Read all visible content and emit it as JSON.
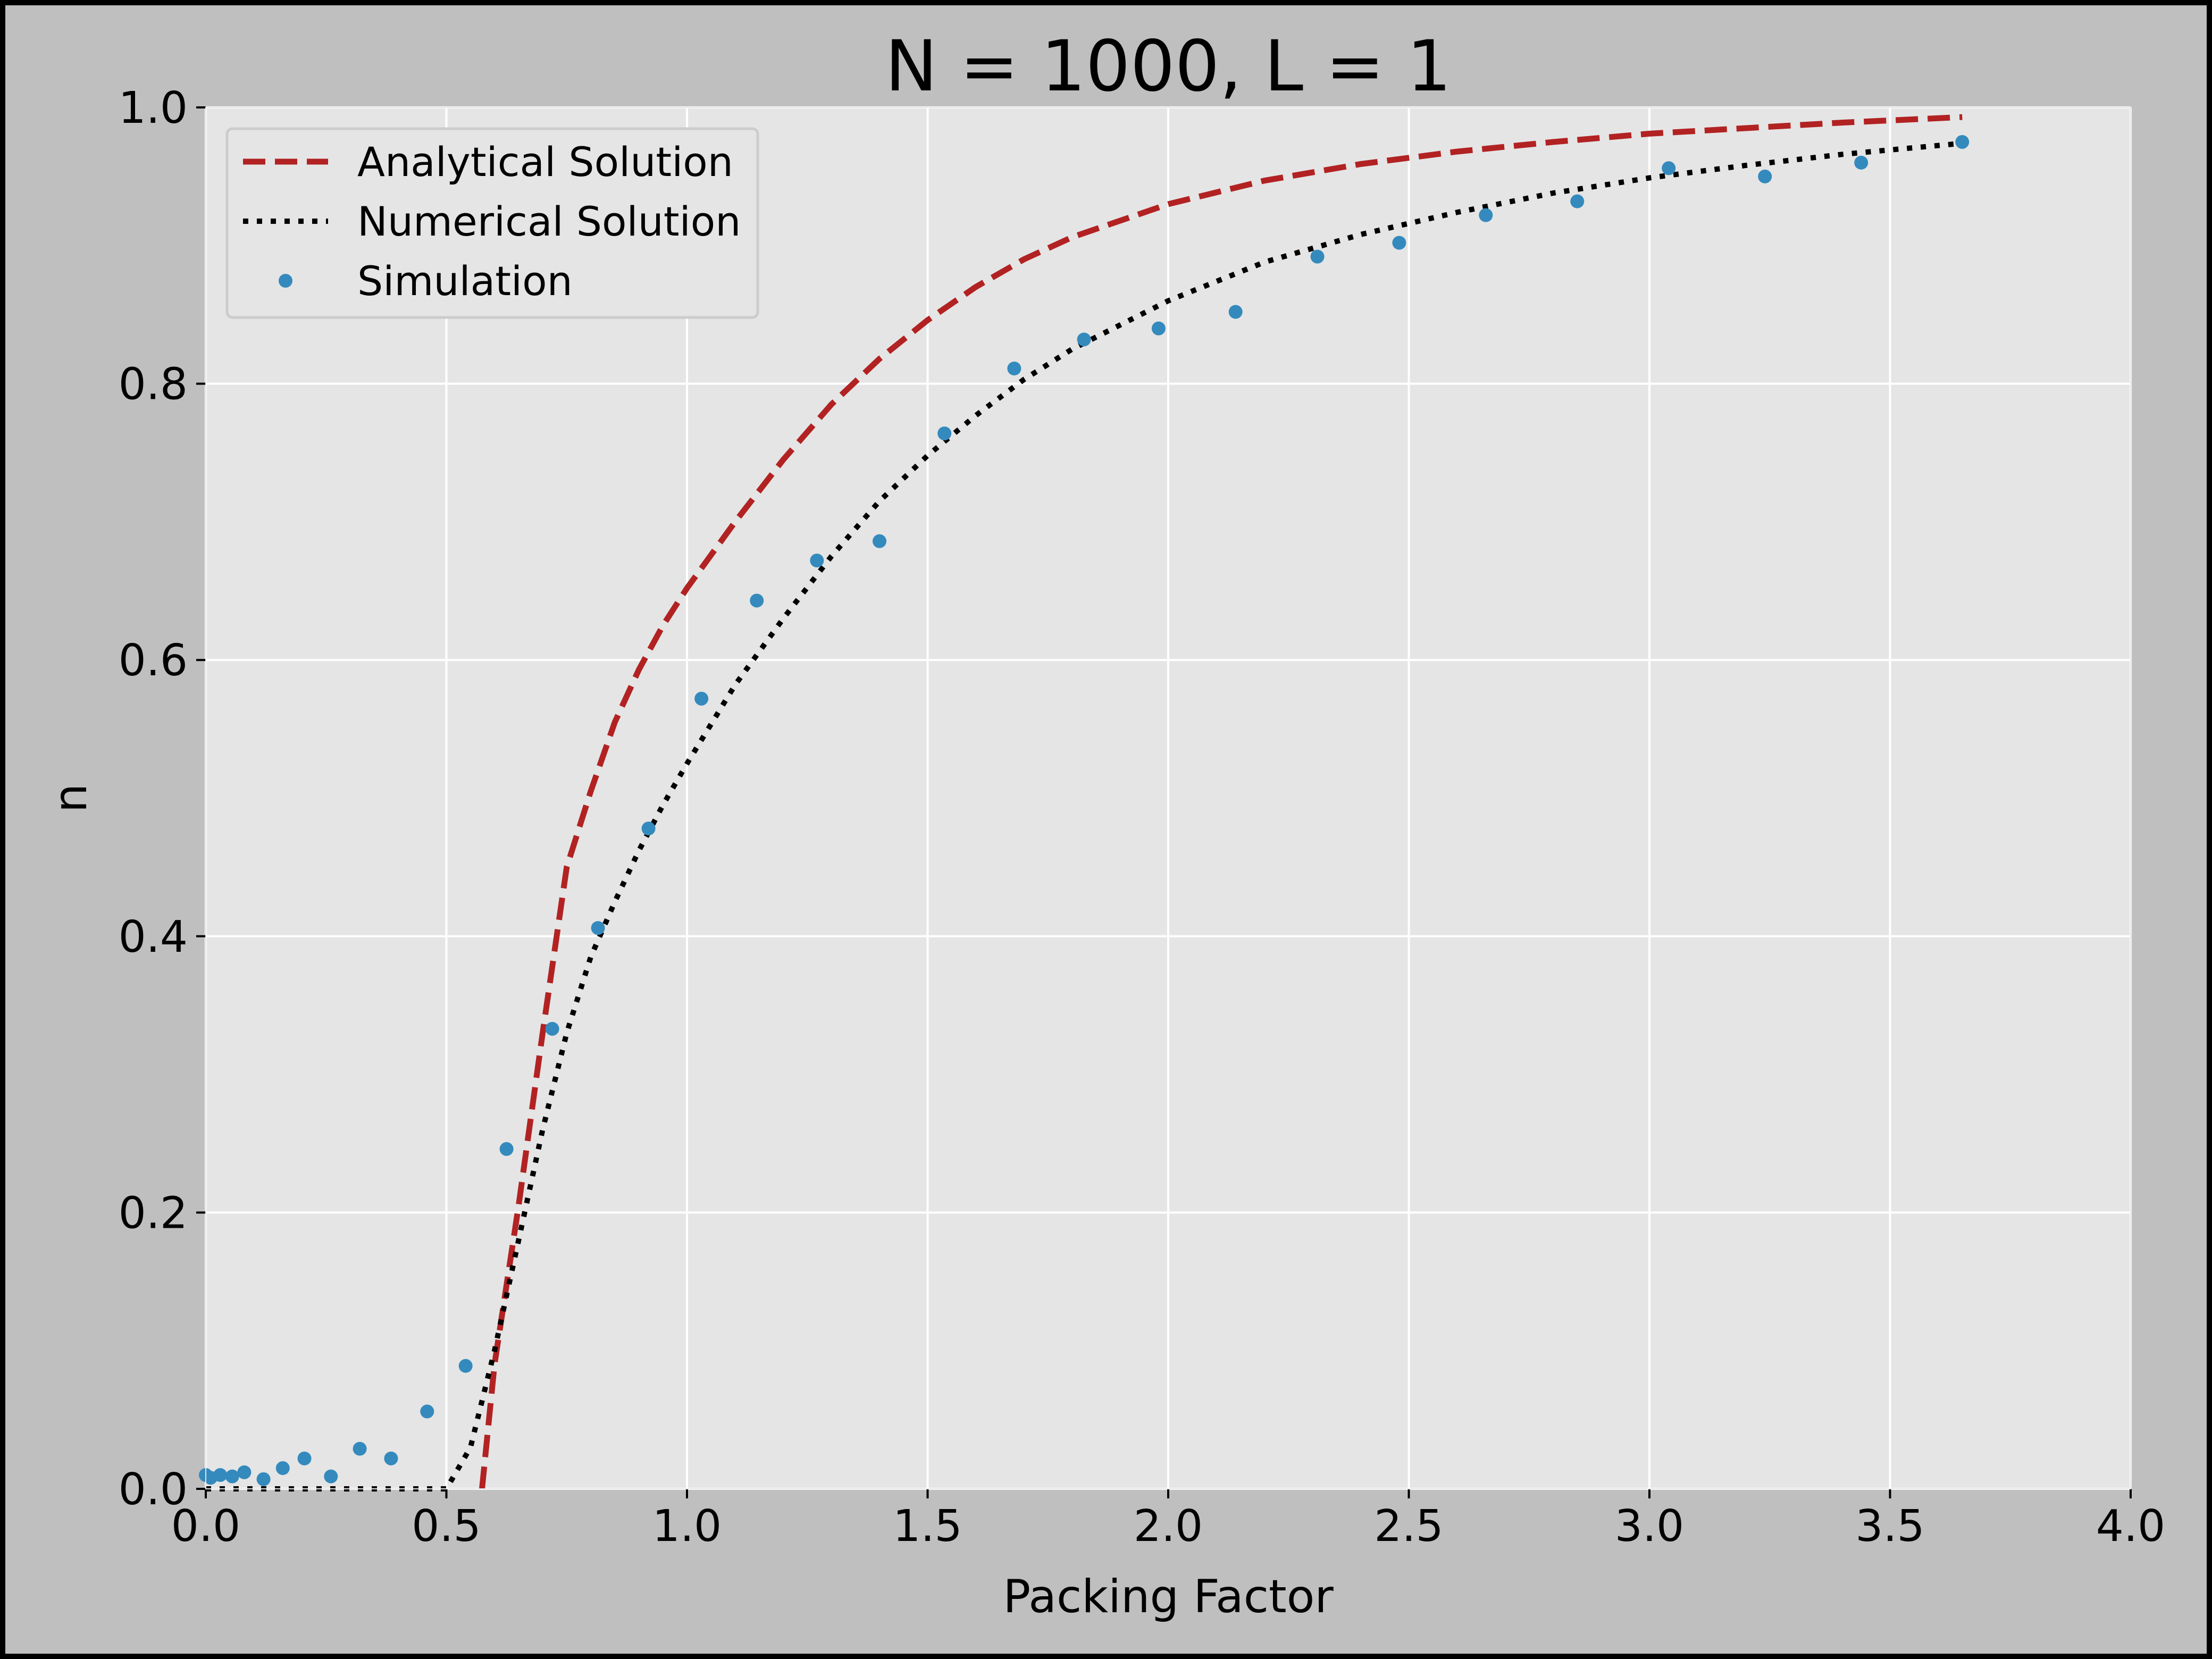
{
  "colors": {
    "figure_bg": "#bfbfbf",
    "axes_bg": "#e5e5e5",
    "grid": "#ffffff",
    "analytical": "#b22222",
    "numerical": "#000000",
    "simulation": "#348abd"
  },
  "chart_data": {
    "type": "line",
    "title": "N = 1000, L = 1",
    "xlabel": "Packing Factor",
    "ylabel": "n",
    "xlim": [
      0.0,
      4.0
    ],
    "ylim": [
      0.0,
      1.0
    ],
    "xticks": [
      0.0,
      0.5,
      1.0,
      1.5,
      2.0,
      2.5,
      3.0,
      3.5,
      4.0
    ],
    "xtick_labels": [
      "0.0",
      "0.5",
      "1.0",
      "1.5",
      "2.0",
      "2.5",
      "3.0",
      "3.5",
      "4.0"
    ],
    "yticks": [
      0.0,
      0.2,
      0.4,
      0.6,
      0.8,
      1.0
    ],
    "ytick_labels": [
      "0.0",
      "0.2",
      "0.4",
      "0.6",
      "0.8",
      "1.0"
    ],
    "grid": true,
    "legend_position": "top-left",
    "series": [
      {
        "name": "Analytical Solution",
        "style": "dashed",
        "color": "#b22222",
        "x": [
          0.574,
          0.6,
          0.65,
          0.7,
          0.75,
          0.8,
          0.85,
          0.9,
          0.95,
          1.0,
          1.1,
          1.2,
          1.3,
          1.4,
          1.5,
          1.6,
          1.7,
          1.8,
          2.0,
          2.2,
          2.4,
          2.6,
          2.8,
          3.0,
          3.2,
          3.4,
          3.65
        ],
        "y": [
          0.0,
          0.09,
          0.205,
          0.33,
          0.45,
          0.505,
          0.555,
          0.593,
          0.625,
          0.652,
          0.7,
          0.745,
          0.785,
          0.818,
          0.846,
          0.87,
          0.89,
          0.906,
          0.93,
          0.947,
          0.959,
          0.968,
          0.975,
          0.981,
          0.985,
          0.989,
          0.993
        ]
      },
      {
        "name": "Numerical Solution",
        "style": "dotted",
        "color": "#000000",
        "x": [
          0.0,
          0.5,
          0.55,
          0.6,
          0.65,
          0.7,
          0.75,
          0.8,
          0.85,
          0.9,
          0.95,
          1.0,
          1.1,
          1.2,
          1.3,
          1.4,
          1.5,
          1.6,
          1.7,
          1.8,
          2.0,
          2.2,
          2.4,
          2.6,
          2.8,
          3.0,
          3.2,
          3.4,
          3.65
        ],
        "y": [
          0.0,
          0.0,
          0.03,
          0.1,
          0.18,
          0.26,
          0.33,
          0.385,
          0.425,
          0.462,
          0.495,
          0.525,
          0.582,
          0.63,
          0.675,
          0.715,
          0.748,
          0.777,
          0.803,
          0.825,
          0.86,
          0.888,
          0.908,
          0.924,
          0.938,
          0.949,
          0.958,
          0.966,
          0.974
        ]
      },
      {
        "name": "Simulation",
        "style": "markers",
        "color": "#348abd",
        "x": [
          0.0,
          0.01,
          0.03,
          0.055,
          0.08,
          0.12,
          0.16,
          0.205,
          0.26,
          0.32,
          0.385,
          0.46,
          0.54,
          0.625,
          0.72,
          0.815,
          0.92,
          1.03,
          1.145,
          1.27,
          1.4,
          1.535,
          1.68,
          1.825,
          1.98,
          2.14,
          2.31,
          2.48,
          2.66,
          2.85,
          3.04,
          3.24,
          3.44,
          3.65
        ],
        "y": [
          0.01,
          0.008,
          0.01,
          0.009,
          0.012,
          0.007,
          0.015,
          0.022,
          0.009,
          0.029,
          0.022,
          0.056,
          0.089,
          0.246,
          0.333,
          0.406,
          0.478,
          0.572,
          0.643,
          0.672,
          0.686,
          0.764,
          0.811,
          0.832,
          0.84,
          0.852,
          0.892,
          0.902,
          0.922,
          0.932,
          0.956,
          0.95,
          0.96,
          0.975
        ]
      }
    ]
  }
}
